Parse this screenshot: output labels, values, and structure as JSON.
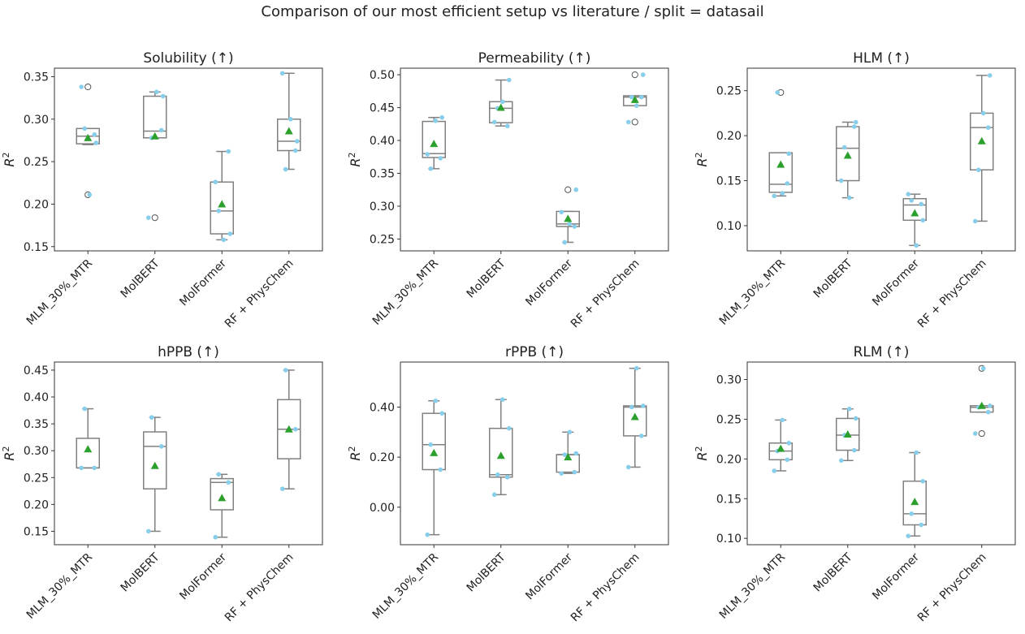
{
  "chart_data": {
    "suptitle": "Comparison of our most efficient setup vs literature / split = datasail",
    "type": "box",
    "categories": [
      "MLM_30%_MTR",
      "MolBERT",
      "MolFormer",
      "RF + PhysChem"
    ],
    "ylabel_base": "R",
    "ylabel_sup": "2",
    "grid": false,
    "colors": {
      "box": "#808080",
      "points": "#87CEEB",
      "mean": "#2ca02c"
    },
    "panels": [
      {
        "title": "Solubility (↑)",
        "ylim": [
          0.145,
          0.36
        ],
        "yticks": [
          0.15,
          0.2,
          0.25,
          0.3,
          0.35
        ],
        "tick_labels": [
          "0.15",
          "0.20",
          "0.25",
          "0.30",
          "0.35"
        ],
        "boxes": [
          {
            "whislo": 0.27,
            "q1": 0.271,
            "med": 0.28,
            "q3": 0.289,
            "whishi": 0.289,
            "mean": 0.278,
            "fliers": [
              0.338,
              0.211
            ]
          },
          {
            "whislo": 0.278,
            "q1": 0.278,
            "med": 0.286,
            "q3": 0.327,
            "whishi": 0.332,
            "mean": 0.28,
            "fliers": [
              0.184
            ]
          },
          {
            "whislo": 0.158,
            "q1": 0.165,
            "med": 0.192,
            "q3": 0.226,
            "whishi": 0.262,
            "mean": 0.2,
            "fliers": []
          },
          {
            "whislo": 0.241,
            "q1": 0.263,
            "med": 0.274,
            "q3": 0.3,
            "whishi": 0.354,
            "mean": 0.286,
            "fliers": []
          }
        ],
        "points": [
          [
            0.338,
            0.282,
            0.289,
            0.272,
            0.211
          ],
          [
            0.184,
            0.287,
            0.278,
            0.327,
            0.332
          ],
          [
            0.226,
            0.262,
            0.192,
            0.165,
            0.158
          ],
          [
            0.354,
            0.263,
            0.241,
            0.274,
            0.3
          ]
        ]
      },
      {
        "title": "Permeability (↑)",
        "ylim": [
          0.232,
          0.51
        ],
        "yticks": [
          0.25,
          0.3,
          0.35,
          0.4,
          0.45,
          0.5
        ],
        "tick_labels": [
          "0.25",
          "0.30",
          "0.35",
          "0.40",
          "0.45",
          "0.50"
        ],
        "boxes": [
          {
            "whislo": 0.357,
            "q1": 0.374,
            "med": 0.38,
            "q3": 0.429,
            "whishi": 0.435,
            "mean": 0.395,
            "fliers": []
          },
          {
            "whislo": 0.422,
            "q1": 0.427,
            "med": 0.449,
            "q3": 0.459,
            "whishi": 0.492,
            "mean": 0.45,
            "fliers": []
          },
          {
            "whislo": 0.245,
            "q1": 0.269,
            "med": 0.273,
            "q3": 0.292,
            "whishi": 0.292,
            "mean": 0.281,
            "fliers": [
              0.325
            ]
          },
          {
            "whislo": 0.453,
            "q1": 0.453,
            "med": 0.466,
            "q3": 0.468,
            "whishi": 0.468,
            "mean": 0.462,
            "fliers": [
              0.5,
              0.428
            ]
          }
        ],
        "points": [
          [
            0.379,
            0.373,
            0.357,
            0.435,
            0.43
          ],
          [
            0.428,
            0.422,
            0.449,
            0.492,
            0.459
          ],
          [
            0.291,
            0.269,
            0.245,
            0.325,
            0.273
          ],
          [
            0.428,
            0.466,
            0.466,
            0.5,
            0.453
          ]
        ]
      },
      {
        "title": "HLM (↑)",
        "ylim": [
          0.072,
          0.275
        ],
        "yticks": [
          0.1,
          0.15,
          0.2,
          0.25
        ],
        "tick_labels": [
          "0.10",
          "0.15",
          "0.20",
          "0.25"
        ],
        "boxes": [
          {
            "whislo": 0.133,
            "q1": 0.137,
            "med": 0.146,
            "q3": 0.181,
            "whishi": 0.181,
            "mean": 0.168,
            "fliers": [
              0.248
            ]
          },
          {
            "whislo": 0.131,
            "q1": 0.15,
            "med": 0.186,
            "q3": 0.21,
            "whishi": 0.215,
            "mean": 0.178,
            "fliers": []
          },
          {
            "whislo": 0.078,
            "q1": 0.106,
            "med": 0.123,
            "q3": 0.13,
            "whishi": 0.135,
            "mean": 0.114,
            "fliers": []
          },
          {
            "whislo": 0.105,
            "q1": 0.162,
            "med": 0.209,
            "q3": 0.225,
            "whishi": 0.267,
            "mean": 0.194,
            "fliers": []
          }
        ],
        "points": [
          [
            0.133,
            0.147,
            0.248,
            0.18,
            0.136
          ],
          [
            0.15,
            0.21,
            0.187,
            0.215,
            0.131
          ],
          [
            0.135,
            0.124,
            0.128,
            0.106,
            0.078
          ],
          [
            0.105,
            0.209,
            0.162,
            0.267,
            0.225
          ]
        ]
      },
      {
        "title": "hPPB (↑)",
        "ylim": [
          0.125,
          0.465
        ],
        "yticks": [
          0.15,
          0.2,
          0.25,
          0.3,
          0.35,
          0.4,
          0.45
        ],
        "tick_labels": [
          "0.15",
          "0.20",
          "0.25",
          "0.30",
          "0.35",
          "0.40",
          "0.45"
        ],
        "boxes": [
          {
            "whislo": 0.268,
            "q1": 0.268,
            "med": 0.268,
            "q3": 0.323,
            "whishi": 0.378,
            "mean": 0.303,
            "fliers": []
          },
          {
            "whislo": 0.15,
            "q1": 0.229,
            "med": 0.308,
            "q3": 0.335,
            "whishi": 0.362,
            "mean": 0.272,
            "fliers": []
          },
          {
            "whislo": 0.139,
            "q1": 0.19,
            "med": 0.241,
            "q3": 0.248,
            "whishi": 0.256,
            "mean": 0.212,
            "fliers": []
          },
          {
            "whislo": 0.229,
            "q1": 0.285,
            "med": 0.34,
            "q3": 0.395,
            "whishi": 0.45,
            "mean": 0.34,
            "fliers": []
          }
        ],
        "points": [
          [
            0.268,
            0.268,
            0.378
          ],
          [
            0.15,
            0.308,
            0.362
          ],
          [
            0.139,
            0.241,
            0.256
          ],
          [
            0.229,
            0.34,
            0.45
          ]
        ]
      },
      {
        "title": "rPPB (↑)",
        "ylim": [
          -0.15,
          0.58
        ],
        "yticks": [
          0.0,
          0.2,
          0.4
        ],
        "tick_labels": [
          "0.00",
          "0.20",
          "0.40"
        ],
        "boxes": [
          {
            "whislo": -0.11,
            "q1": 0.15,
            "med": 0.25,
            "q3": 0.375,
            "whishi": 0.425,
            "mean": 0.217,
            "fliers": []
          },
          {
            "whislo": 0.05,
            "q1": 0.12,
            "med": 0.13,
            "q3": 0.315,
            "whishi": 0.43,
            "mean": 0.206,
            "fliers": []
          },
          {
            "whislo": 0.135,
            "q1": 0.14,
            "med": 0.21,
            "q3": 0.21,
            "whishi": 0.3,
            "mean": 0.2,
            "fliers": []
          },
          {
            "whislo": 0.16,
            "q1": 0.285,
            "med": 0.4,
            "q3": 0.405,
            "whishi": 0.555,
            "mean": 0.361,
            "fliers": []
          }
        ],
        "points": [
          [
            -0.11,
            0.15,
            0.25,
            0.375,
            0.425
          ],
          [
            0.05,
            0.12,
            0.13,
            0.315,
            0.43
          ],
          [
            0.135,
            0.14,
            0.21,
            0.215,
            0.3
          ],
          [
            0.16,
            0.285,
            0.4,
            0.405,
            0.555
          ]
        ]
      },
      {
        "title": "RLM (↑)",
        "ylim": [
          0.092,
          0.322
        ],
        "yticks": [
          0.1,
          0.15,
          0.2,
          0.25,
          0.3
        ],
        "tick_labels": [
          "0.10",
          "0.15",
          "0.20",
          "0.25",
          "0.30"
        ],
        "boxes": [
          {
            "whislo": 0.185,
            "q1": 0.199,
            "med": 0.21,
            "q3": 0.22,
            "whishi": 0.249,
            "mean": 0.213,
            "fliers": []
          },
          {
            "whislo": 0.198,
            "q1": 0.211,
            "med": 0.23,
            "q3": 0.251,
            "whishi": 0.263,
            "mean": 0.231,
            "fliers": []
          },
          {
            "whislo": 0.103,
            "q1": 0.117,
            "med": 0.131,
            "q3": 0.172,
            "whishi": 0.208,
            "mean": 0.146,
            "fliers": []
          },
          {
            "whislo": 0.259,
            "q1": 0.259,
            "med": 0.265,
            "q3": 0.267,
            "whishi": 0.267,
            "mean": 0.267,
            "fliers": [
              0.314,
              0.232
            ]
          }
        ],
        "points": [
          [
            0.185,
            0.199,
            0.21,
            0.22,
            0.249
          ],
          [
            0.198,
            0.211,
            0.23,
            0.251,
            0.263
          ],
          [
            0.103,
            0.117,
            0.131,
            0.172,
            0.208
          ],
          [
            0.232,
            0.259,
            0.265,
            0.267,
            0.314
          ]
        ]
      }
    ]
  }
}
